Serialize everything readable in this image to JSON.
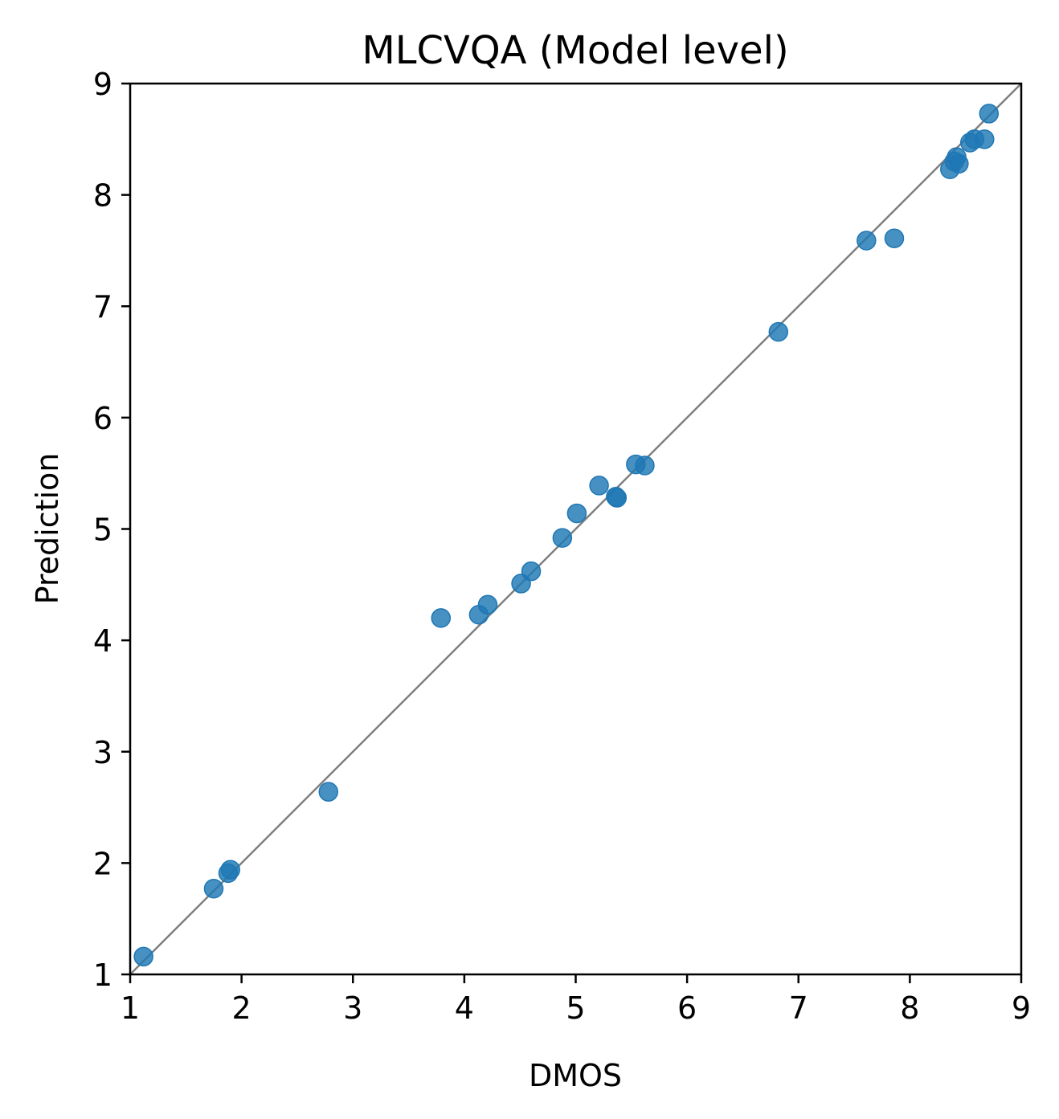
{
  "chart_data": {
    "type": "scatter",
    "title": "MLCVQA (Model level)",
    "xlabel": "DMOS",
    "ylabel": "Prediction",
    "xlim": [
      1,
      9
    ],
    "ylim": [
      1,
      9
    ],
    "xticks": [
      "1",
      "2",
      "3",
      "4",
      "5",
      "6",
      "7",
      "8",
      "9"
    ],
    "yticks": [
      "1",
      "2",
      "3",
      "4",
      "5",
      "6",
      "7",
      "8",
      "9"
    ],
    "grid": false,
    "reference_line": "y = x",
    "points": [
      {
        "x": 1.12,
        "y": 1.16
      },
      {
        "x": 1.75,
        "y": 1.77
      },
      {
        "x": 1.88,
        "y": 1.91
      },
      {
        "x": 1.9,
        "y": 1.94
      },
      {
        "x": 2.78,
        "y": 2.64
      },
      {
        "x": 3.79,
        "y": 4.2
      },
      {
        "x": 4.13,
        "y": 4.23
      },
      {
        "x": 4.21,
        "y": 4.32
      },
      {
        "x": 4.51,
        "y": 4.51
      },
      {
        "x": 4.6,
        "y": 4.62
      },
      {
        "x": 4.88,
        "y": 4.92
      },
      {
        "x": 5.01,
        "y": 5.14
      },
      {
        "x": 5.21,
        "y": 5.39
      },
      {
        "x": 5.36,
        "y": 5.29
      },
      {
        "x": 5.37,
        "y": 5.28
      },
      {
        "x": 5.54,
        "y": 5.58
      },
      {
        "x": 5.62,
        "y": 5.57
      },
      {
        "x": 6.82,
        "y": 6.77
      },
      {
        "x": 7.61,
        "y": 7.59
      },
      {
        "x": 7.86,
        "y": 7.61
      },
      {
        "x": 8.36,
        "y": 8.23
      },
      {
        "x": 8.4,
        "y": 8.3
      },
      {
        "x": 8.42,
        "y": 8.34
      },
      {
        "x": 8.44,
        "y": 8.28
      },
      {
        "x": 8.54,
        "y": 8.47
      },
      {
        "x": 8.58,
        "y": 8.5
      },
      {
        "x": 8.67,
        "y": 8.5
      },
      {
        "x": 8.71,
        "y": 8.73
      }
    ],
    "colors": {
      "points": "#1f77b4",
      "reference_line": "#7f7f7f",
      "axes": "#000000"
    }
  }
}
